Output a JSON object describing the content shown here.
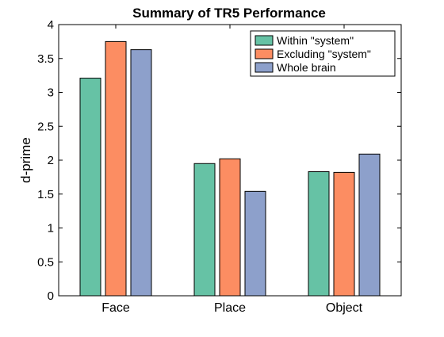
{
  "chart_data": {
    "type": "bar",
    "title": "Summary of TR5 Performance",
    "xlabel": "",
    "ylabel": "d-prime",
    "categories": [
      "Face",
      "Place",
      "Object"
    ],
    "series": [
      {
        "name": "Within \"system\"",
        "color": "#66c2a5",
        "values": [
          3.21,
          1.95,
          1.83
        ]
      },
      {
        "name": "Excluding \"system\"",
        "color": "#fc8d62",
        "values": [
          3.75,
          2.02,
          1.82
        ]
      },
      {
        "name": "Whole brain",
        "color": "#8da0cb",
        "values": [
          3.63,
          1.54,
          2.09
        ]
      }
    ],
    "ylim": [
      0,
      4
    ],
    "yticks": [
      "0",
      "0.5",
      "1",
      "1.5",
      "2",
      "2.5",
      "3",
      "3.5",
      "4"
    ],
    "grid": false,
    "legend_position": "top-right"
  }
}
